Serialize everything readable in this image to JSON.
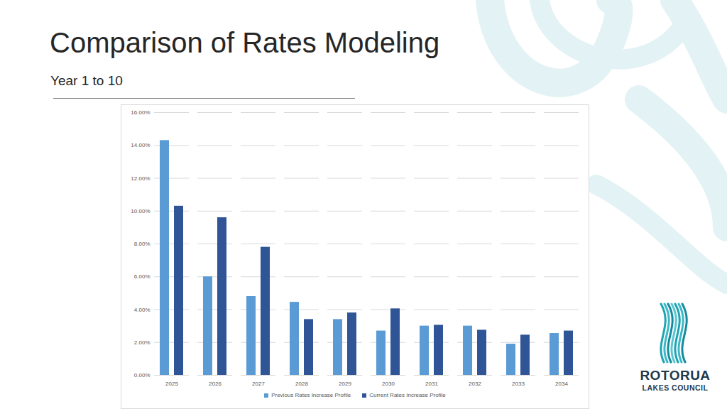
{
  "chart_data": {
    "type": "bar",
    "title": "Comparison of Rates Modeling",
    "subtitle": "Year 1 to 10",
    "categories": [
      "2025",
      "2026",
      "2027",
      "2028",
      "2029",
      "2030",
      "2031",
      "2032",
      "2033",
      "2034"
    ],
    "series": [
      {
        "name": "Previous Rates Increase Profile",
        "color": "#5b9bd5",
        "values": [
          14.3,
          6.0,
          4.8,
          4.45,
          3.4,
          2.7,
          3.0,
          3.0,
          1.9,
          2.55
        ]
      },
      {
        "name": "Current Rates Increase Profile",
        "color": "#2f5597",
        "values": [
          10.3,
          9.6,
          7.8,
          3.4,
          3.8,
          4.05,
          3.05,
          2.75,
          2.45,
          2.7
        ]
      }
    ],
    "ylim": [
      0,
      16
    ],
    "yticks": [
      {
        "value": 0,
        "label": "0.00%"
      },
      {
        "value": 2,
        "label": "2.00%"
      },
      {
        "value": 4,
        "label": "4.00%"
      },
      {
        "value": 6,
        "label": "6.00%"
      },
      {
        "value": 8,
        "label": "8.00%"
      },
      {
        "value": 10,
        "label": "10.00%"
      },
      {
        "value": 12,
        "label": "12.00%"
      },
      {
        "value": 14,
        "label": "14.00%"
      },
      {
        "value": 16,
        "label": "16.00%"
      }
    ],
    "grid": true,
    "legend": "bottom"
  },
  "branding": {
    "lines": [
      "ROTORUA",
      "LAKES COUNCIL"
    ]
  }
}
